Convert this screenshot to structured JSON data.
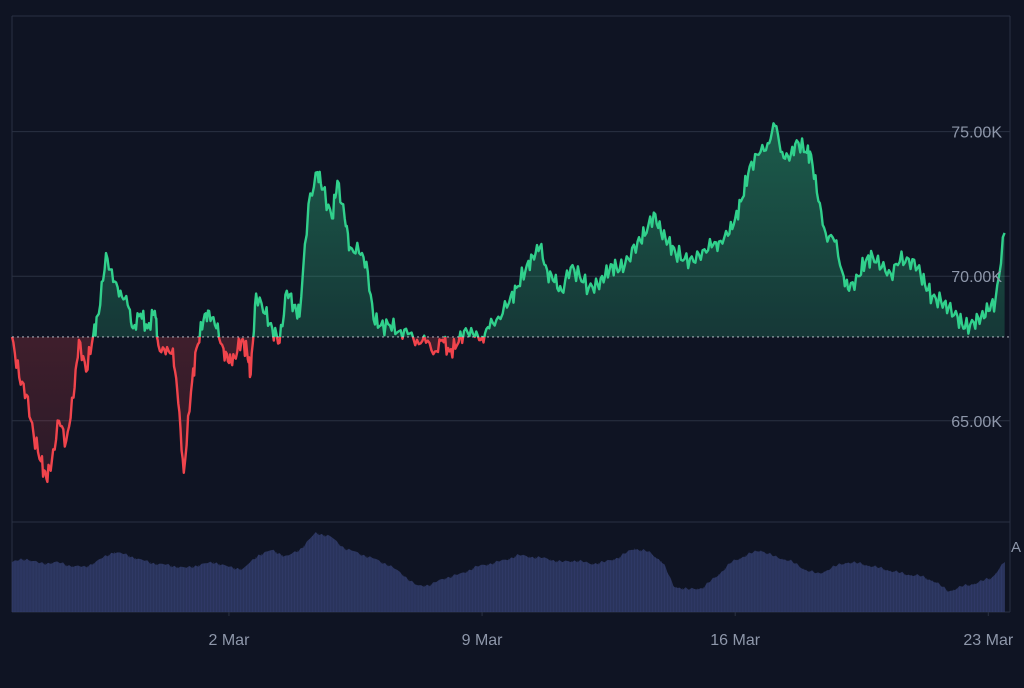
{
  "chart_data": {
    "type": "area",
    "baseline": 67.9,
    "ylim": [
      61.5,
      79.0
    ],
    "y_ticks": [
      {
        "value": 65,
        "label": "65.00K"
      },
      {
        "value": 70,
        "label": "70.00K"
      },
      {
        "value": 75,
        "label": "75.00K"
      }
    ],
    "x_ticks": [
      {
        "day": 2,
        "label": "2 Mar"
      },
      {
        "day": 9,
        "label": "9 Mar"
      },
      {
        "day": 16,
        "label": "16 Mar"
      },
      {
        "day": 23,
        "label": "23 Mar"
      }
    ],
    "x_range_days": [
      -4.0,
      23.6
    ],
    "price_points": [
      [
        -4.0,
        67.9
      ],
      [
        -3.8,
        66.5
      ],
      [
        -3.6,
        65.9
      ],
      [
        -3.4,
        64.5
      ],
      [
        -3.2,
        63.6
      ],
      [
        -3.05,
        63.0
      ],
      [
        -2.9,
        63.6
      ],
      [
        -2.7,
        65.0
      ],
      [
        -2.5,
        64.3
      ],
      [
        -2.3,
        65.8
      ],
      [
        -2.15,
        67.8
      ],
      [
        -1.95,
        66.7
      ],
      [
        -1.75,
        68.0
      ],
      [
        -1.6,
        68.7
      ],
      [
        -1.4,
        70.8
      ],
      [
        -1.2,
        69.8
      ],
      [
        -1.0,
        69.5
      ],
      [
        -0.8,
        69.0
      ],
      [
        -0.65,
        68.2
      ],
      [
        -0.45,
        68.7
      ],
      [
        -0.25,
        68.2
      ],
      [
        -0.05,
        68.8
      ],
      [
        0.05,
        67.6
      ],
      [
        0.25,
        67.3
      ],
      [
        0.45,
        67.5
      ],
      [
        0.6,
        65.6
      ],
      [
        0.75,
        63.2
      ],
      [
        0.95,
        66.0
      ],
      [
        1.1,
        67.5
      ],
      [
        1.3,
        68.5
      ],
      [
        1.45,
        68.8
      ],
      [
        1.65,
        68.2
      ],
      [
        1.85,
        67.5
      ],
      [
        2.0,
        67.0
      ],
      [
        2.15,
        67.2
      ],
      [
        2.35,
        67.8
      ],
      [
        2.5,
        67.4
      ],
      [
        2.6,
        66.6
      ],
      [
        2.75,
        69.4
      ],
      [
        3.0,
        68.7
      ],
      [
        3.2,
        68.2
      ],
      [
        3.4,
        67.7
      ],
      [
        3.6,
        69.5
      ],
      [
        3.8,
        69.0
      ],
      [
        3.95,
        68.6
      ],
      [
        4.2,
        72.5
      ],
      [
        4.45,
        73.6
      ],
      [
        4.6,
        73.0
      ],
      [
        4.85,
        72.0
      ],
      [
        5.0,
        73.3
      ],
      [
        5.2,
        72.0
      ],
      [
        5.35,
        71.0
      ],
      [
        5.6,
        70.8
      ],
      [
        5.8,
        70.5
      ],
      [
        6.0,
        68.5
      ],
      [
        6.2,
        68.3
      ],
      [
        6.45,
        68.3
      ],
      [
        6.7,
        68.1
      ],
      [
        6.95,
        68.0
      ],
      [
        7.2,
        67.8
      ],
      [
        7.45,
        67.7
      ],
      [
        7.7,
        67.4
      ],
      [
        7.9,
        67.8
      ],
      [
        8.1,
        67.4
      ],
      [
        8.3,
        67.6
      ],
      [
        8.55,
        68.2
      ],
      [
        8.8,
        67.9
      ],
      [
        9.0,
        67.9
      ],
      [
        9.2,
        68.2
      ],
      [
        9.45,
        68.6
      ],
      [
        9.75,
        69.1
      ],
      [
        9.95,
        69.6
      ],
      [
        10.2,
        70.2
      ],
      [
        10.4,
        70.7
      ],
      [
        10.6,
        71.0
      ],
      [
        10.8,
        70.2
      ],
      [
        11.0,
        69.8
      ],
      [
        11.2,
        69.5
      ],
      [
        11.45,
        70.3
      ],
      [
        11.7,
        70.0
      ],
      [
        11.95,
        69.6
      ],
      [
        12.2,
        69.7
      ],
      [
        12.4,
        70.0
      ],
      [
        12.6,
        70.4
      ],
      [
        12.8,
        70.2
      ],
      [
        13.05,
        70.6
      ],
      [
        13.3,
        71.2
      ],
      [
        13.5,
        71.4
      ],
      [
        13.75,
        72.2
      ],
      [
        13.95,
        71.5
      ],
      [
        14.15,
        71.2
      ],
      [
        14.35,
        70.8
      ],
      [
        14.6,
        70.6
      ],
      [
        14.85,
        70.5
      ],
      [
        15.1,
        70.9
      ],
      [
        15.35,
        71.0
      ],
      [
        15.55,
        71.2
      ],
      [
        15.8,
        71.4
      ],
      [
        16.0,
        72.0
      ],
      [
        16.2,
        72.7
      ],
      [
        16.4,
        73.8
      ],
      [
        16.65,
        74.2
      ],
      [
        16.9,
        74.6
      ],
      [
        17.1,
        75.2
      ],
      [
        17.3,
        74.3
      ],
      [
        17.5,
        74.0
      ],
      [
        17.7,
        74.7
      ],
      [
        17.95,
        74.3
      ],
      [
        18.1,
        74.2
      ],
      [
        18.3,
        72.6
      ],
      [
        18.5,
        71.5
      ],
      [
        18.75,
        71.2
      ],
      [
        19.0,
        70.0
      ],
      [
        19.15,
        69.5
      ],
      [
        19.4,
        70.0
      ],
      [
        19.6,
        70.5
      ],
      [
        19.8,
        70.7
      ],
      [
        20.05,
        70.3
      ],
      [
        20.3,
        70.1
      ],
      [
        20.55,
        70.5
      ],
      [
        20.8,
        70.6
      ],
      [
        21.05,
        70.3
      ],
      [
        21.25,
        69.7
      ],
      [
        21.45,
        69.3
      ],
      [
        21.7,
        69.1
      ],
      [
        21.9,
        68.9
      ],
      [
        22.15,
        68.6
      ],
      [
        22.35,
        68.2
      ],
      [
        22.6,
        68.4
      ],
      [
        22.8,
        68.6
      ],
      [
        23.0,
        68.8
      ],
      [
        23.2,
        69.2
      ],
      [
        23.45,
        71.5
      ]
    ],
    "volume_points": [
      [
        -4.0,
        0.58
      ],
      [
        -3.6,
        0.62
      ],
      [
        -3.2,
        0.56
      ],
      [
        -2.8,
        0.58
      ],
      [
        -2.4,
        0.54
      ],
      [
        -2.0,
        0.52
      ],
      [
        -1.6,
        0.6
      ],
      [
        -1.2,
        0.7
      ],
      [
        -0.8,
        0.66
      ],
      [
        -0.4,
        0.6
      ],
      [
        0.0,
        0.56
      ],
      [
        0.4,
        0.54
      ],
      [
        0.8,
        0.51
      ],
      [
        1.2,
        0.55
      ],
      [
        1.6,
        0.58
      ],
      [
        2.0,
        0.52
      ],
      [
        2.4,
        0.5
      ],
      [
        2.8,
        0.66
      ],
      [
        3.2,
        0.72
      ],
      [
        3.6,
        0.64
      ],
      [
        4.0,
        0.74
      ],
      [
        4.4,
        0.92
      ],
      [
        4.8,
        0.88
      ],
      [
        5.2,
        0.74
      ],
      [
        5.6,
        0.68
      ],
      [
        6.0,
        0.62
      ],
      [
        6.4,
        0.55
      ],
      [
        6.8,
        0.44
      ],
      [
        7.2,
        0.3
      ],
      [
        7.6,
        0.32
      ],
      [
        8.0,
        0.4
      ],
      [
        8.4,
        0.44
      ],
      [
        8.8,
        0.52
      ],
      [
        9.2,
        0.56
      ],
      [
        9.6,
        0.6
      ],
      [
        10.0,
        0.66
      ],
      [
        10.4,
        0.64
      ],
      [
        10.8,
        0.62
      ],
      [
        11.2,
        0.58
      ],
      [
        11.6,
        0.6
      ],
      [
        12.0,
        0.56
      ],
      [
        12.4,
        0.58
      ],
      [
        12.8,
        0.64
      ],
      [
        13.2,
        0.74
      ],
      [
        13.6,
        0.7
      ],
      [
        14.0,
        0.58
      ],
      [
        14.3,
        0.3
      ],
      [
        14.7,
        0.26
      ],
      [
        15.1,
        0.28
      ],
      [
        15.5,
        0.42
      ],
      [
        15.9,
        0.58
      ],
      [
        16.3,
        0.66
      ],
      [
        16.7,
        0.72
      ],
      [
        17.1,
        0.64
      ],
      [
        17.5,
        0.6
      ],
      [
        17.9,
        0.5
      ],
      [
        18.3,
        0.44
      ],
      [
        18.7,
        0.52
      ],
      [
        19.1,
        0.58
      ],
      [
        19.5,
        0.56
      ],
      [
        19.9,
        0.52
      ],
      [
        20.3,
        0.48
      ],
      [
        20.7,
        0.44
      ],
      [
        21.1,
        0.42
      ],
      [
        21.5,
        0.36
      ],
      [
        21.9,
        0.24
      ],
      [
        22.3,
        0.3
      ],
      [
        22.7,
        0.34
      ],
      [
        23.1,
        0.4
      ],
      [
        23.45,
        0.58
      ]
    ],
    "colors": {
      "background": "#0f1423",
      "up_line": "#31d08c",
      "down_line": "#f0444c",
      "grid": "#2a3143",
      "axis_text": "#8e97aa",
      "volume": "#2f3a66",
      "baseline": "#c8cdd6"
    },
    "grid": true,
    "volume_axis_label": "A"
  }
}
